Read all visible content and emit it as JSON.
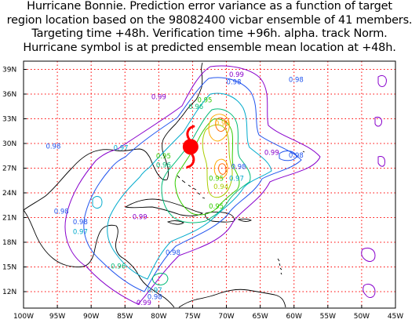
{
  "title": {
    "lines": [
      "Hurricane Bonnie.  Prediction error variance as a function of target",
      "region location based on the 98082400 vicbar ensemble of 41 members.",
      "Targeting time +48h. Verification time +96h. alpha. track Norm.",
      "Hurricane symbol is at predicted ensemble mean location at +48h."
    ]
  },
  "map": {
    "lon_range": [
      -100,
      -45
    ],
    "lat_range": [
      10,
      40
    ],
    "grid": "on",
    "grid_color": "#ff0000",
    "coast_color": "#000000",
    "lat_ticks": [
      {
        "value": 39,
        "label": "39N"
      },
      {
        "value": 36,
        "label": "36N"
      },
      {
        "value": 33,
        "label": "33N"
      },
      {
        "value": 30,
        "label": "30N"
      },
      {
        "value": 27,
        "label": "27N"
      },
      {
        "value": 24,
        "label": "24N"
      },
      {
        "value": 21,
        "label": "21N"
      },
      {
        "value": 18,
        "label": "18N"
      },
      {
        "value": 15,
        "label": "15N"
      },
      {
        "value": 12,
        "label": "12N"
      }
    ],
    "lon_ticks": [
      {
        "value": -100,
        "label": "100W"
      },
      {
        "value": -95,
        "label": "95W"
      },
      {
        "value": -90,
        "label": "90W"
      },
      {
        "value": -85,
        "label": "85W"
      },
      {
        "value": -80,
        "label": "80W"
      },
      {
        "value": -75,
        "label": "75W"
      },
      {
        "value": -70,
        "label": "70W"
      },
      {
        "value": -65,
        "label": "65W"
      },
      {
        "value": -60,
        "label": "60W"
      },
      {
        "value": -55,
        "label": "55W"
      },
      {
        "value": -50,
        "label": "50W"
      },
      {
        "value": -45,
        "label": "45W"
      }
    ],
    "hurricane": {
      "lon": -75.3,
      "lat": 29.6,
      "color": "#ff0000",
      "icon": "hurricane-icon"
    },
    "contour_colors": {
      "0.99": "#8800cc",
      "0.98": "#2255ee",
      "0.97": "#00aacc",
      "0.96": "#00bb77",
      "0.95": "#33cc00",
      "0.94": "#aacc00",
      "0.93": "#ffaa00",
      "0.92": "#ff6600"
    },
    "contour_labels": [
      {
        "text": "0.99",
        "lon": -80.0,
        "lat": 35.4,
        "level": "0.99"
      },
      {
        "text": "0.98",
        "lon": -68.9,
        "lat": 37.2,
        "level": "0.98"
      },
      {
        "text": "0.98",
        "lon": -59.7,
        "lat": 37.5,
        "level": "0.98"
      },
      {
        "text": "0.99",
        "lon": -68.5,
        "lat": 38.1,
        "level": "0.99"
      },
      {
        "text": "0.95",
        "lon": -73.2,
        "lat": 35.0,
        "level": "0.95"
      },
      {
        "text": "0.96",
        "lon": -74.5,
        "lat": 34.2,
        "level": "0.96"
      },
      {
        "text": "0.93",
        "lon": -70.6,
        "lat": 32.2,
        "level": "0.93"
      },
      {
        "text": "0.98",
        "lon": -95.6,
        "lat": 29.4,
        "level": "0.98"
      },
      {
        "text": "0.97",
        "lon": -85.6,
        "lat": 29.2,
        "level": "0.97"
      },
      {
        "text": "0.96",
        "lon": -75.2,
        "lat": 29.2,
        "level": "0.96"
      },
      {
        "text": "0.95",
        "lon": -79.3,
        "lat": 28.2,
        "level": "0.95"
      },
      {
        "text": "0.96",
        "lon": -79.3,
        "lat": 27.1,
        "level": "0.96"
      },
      {
        "text": "0.99",
        "lon": -63.3,
        "lat": 28.6,
        "level": "0.99"
      },
      {
        "text": "0.98",
        "lon": -59.7,
        "lat": 28.3,
        "level": "0.98"
      },
      {
        "text": "0.98",
        "lon": -68.2,
        "lat": 26.9,
        "level": "0.98"
      },
      {
        "text": "0.95",
        "lon": -71.5,
        "lat": 25.5,
        "level": "0.95"
      },
      {
        "text": "0.97",
        "lon": -68.5,
        "lat": 25.5,
        "level": "0.97"
      },
      {
        "text": "0.94",
        "lon": -70.8,
        "lat": 24.5,
        "level": "0.94"
      },
      {
        "text": "0.95",
        "lon": -71.5,
        "lat": 22.1,
        "level": "0.95"
      },
      {
        "text": "0.98",
        "lon": -94.4,
        "lat": 21.5,
        "level": "0.98"
      },
      {
        "text": "0.99",
        "lon": -82.8,
        "lat": 20.8,
        "level": "0.99"
      },
      {
        "text": "0.98",
        "lon": -91.6,
        "lat": 20.2,
        "level": "0.98"
      },
      {
        "text": "0.97",
        "lon": -91.6,
        "lat": 19.0,
        "level": "0.97"
      },
      {
        "text": "0.98",
        "lon": -77.9,
        "lat": 16.5,
        "level": "0.98"
      },
      {
        "text": "0.96",
        "lon": -86.0,
        "lat": 14.8,
        "level": "0.96"
      },
      {
        "text": "0.97",
        "lon": -80.6,
        "lat": 11.9,
        "level": "0.97"
      },
      {
        "text": "0.98",
        "lon": -80.6,
        "lat": 11.1,
        "level": "0.98"
      },
      {
        "text": "0.99",
        "lon": -82.2,
        "lat": 10.4,
        "level": "0.99"
      }
    ]
  }
}
